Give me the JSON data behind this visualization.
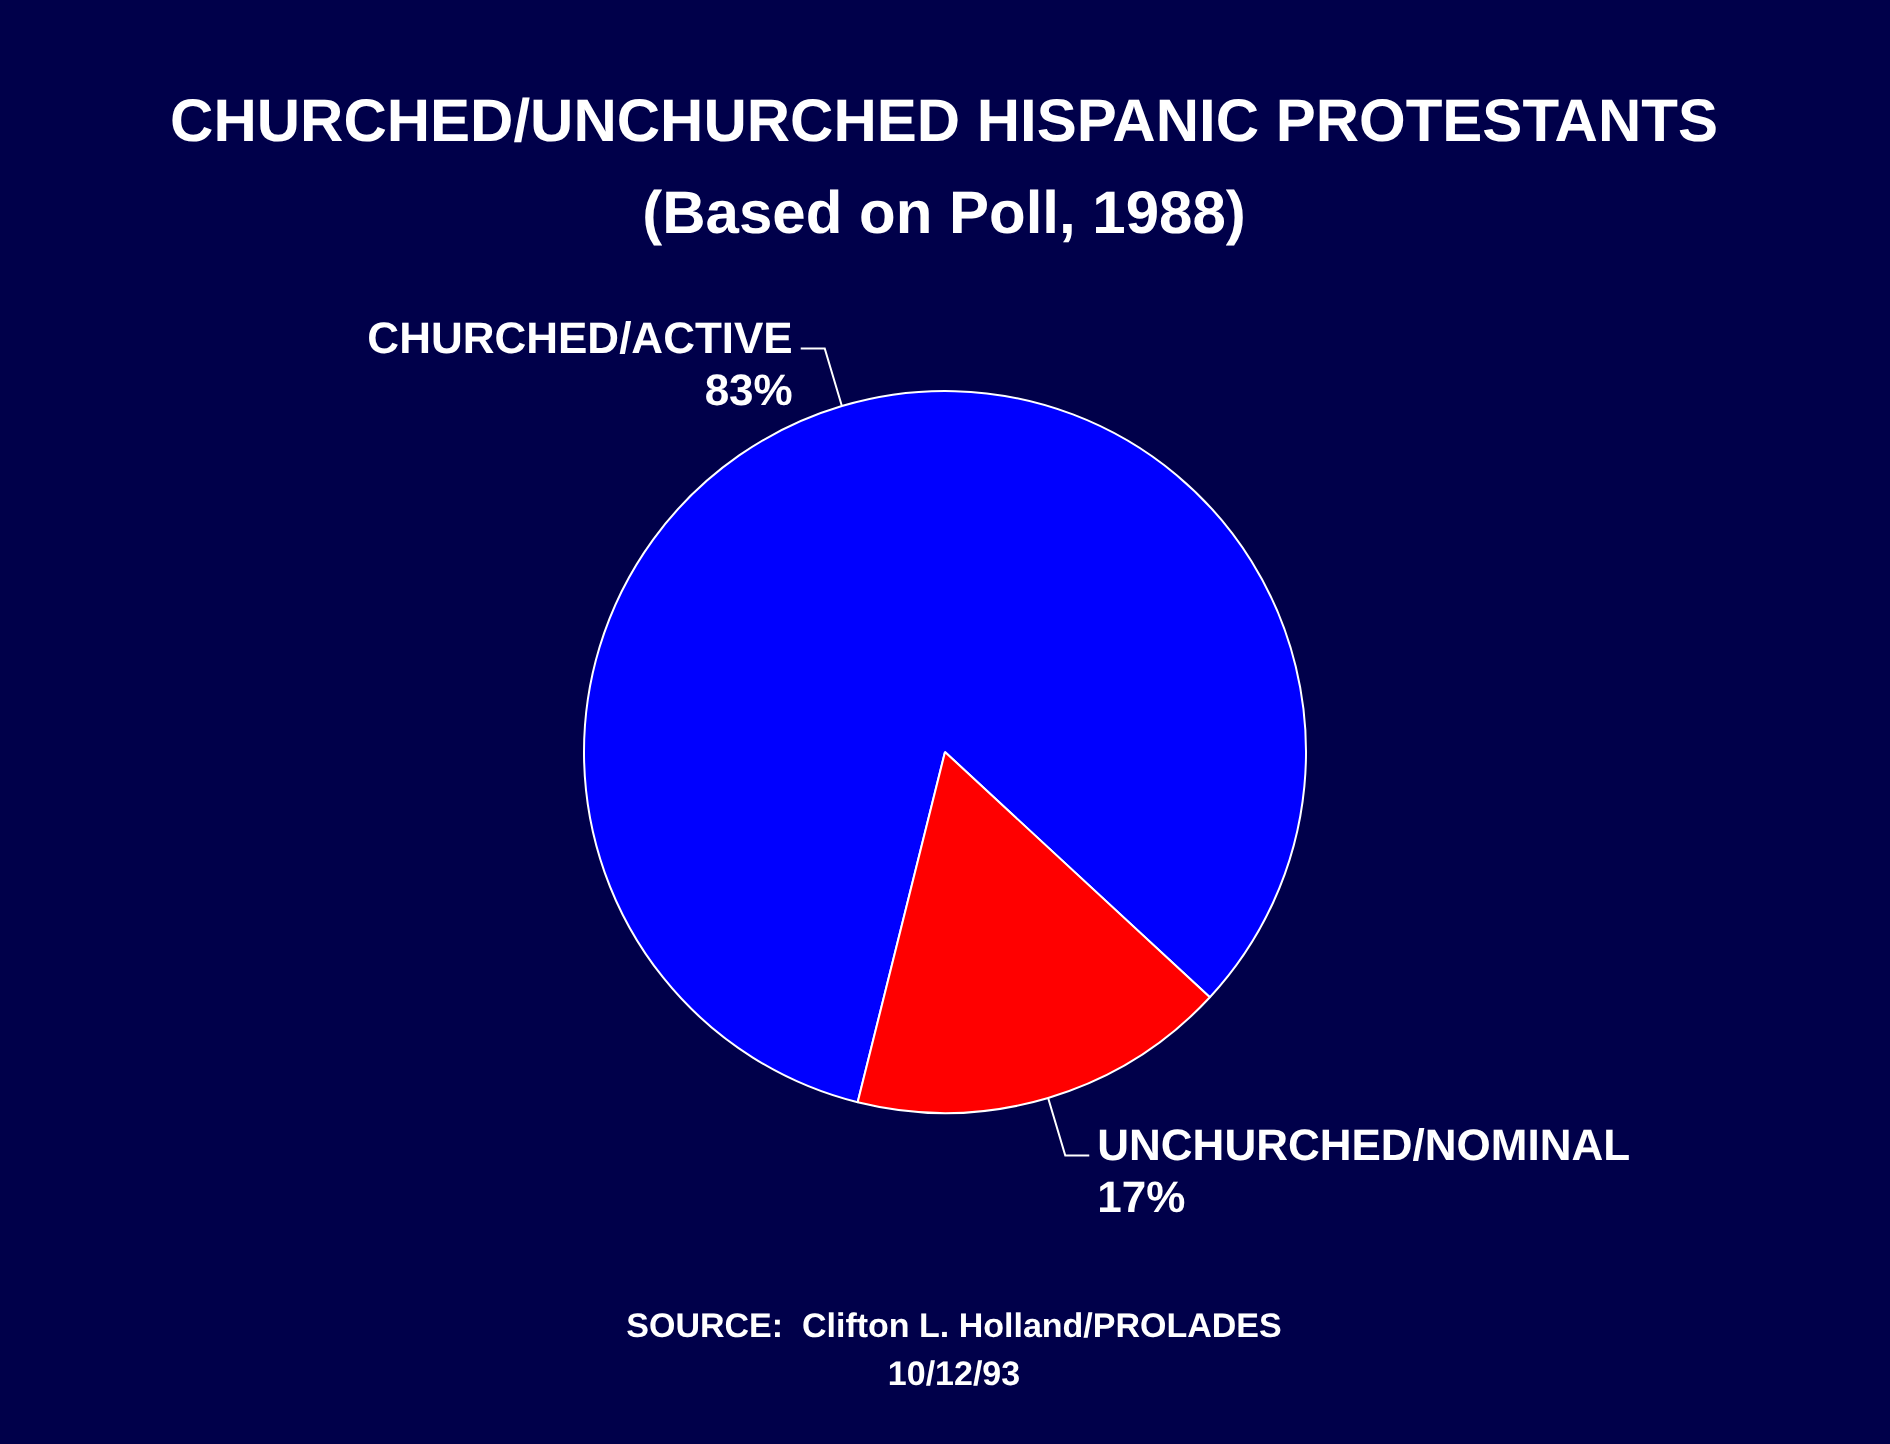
{
  "chart_data": {
    "type": "pie",
    "title": "CHURCHED/UNCHURCHED HISPANIC PROTESTANTS",
    "subtitle": "(Based on Poll, 1988)",
    "categories": [
      "CHURCHED/ACTIVE",
      "UNCHURCHED/NOMINAL"
    ],
    "values": [
      83,
      17
    ],
    "colors": [
      "#0000ff",
      "#ff0000"
    ],
    "value_labels": [
      "83%",
      "17%"
    ],
    "legend": false,
    "annotations": [
      "SOURCE:  Clifton L. Holland/PROLADES",
      "10/12/93"
    ]
  }
}
